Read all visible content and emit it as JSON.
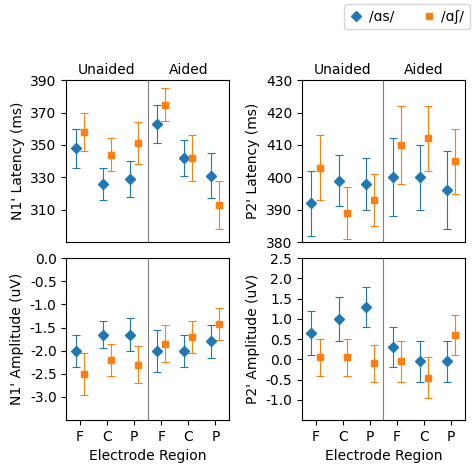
{
  "chart_data": [
    {
      "type": "scatter",
      "ylabel": "N1' Latency (ms)",
      "categories": [
        null,
        null,
        null,
        null,
        null,
        null
      ],
      "annotations": [
        "Unaided",
        "Aided"
      ],
      "series": [
        {
          "name": "/ɑs/",
          "marker": "diamond",
          "values": [
            348,
            326,
            329,
            363,
            342,
            331
          ],
          "errors": [
            12,
            10,
            11,
            12,
            11,
            14
          ]
        },
        {
          "name": "/ɑʃ/",
          "marker": "square",
          "values": [
            358,
            344,
            351,
            375,
            342,
            313
          ],
          "errors": [
            12,
            10,
            13,
            10,
            14,
            15
          ]
        }
      ],
      "ylim": [
        290,
        390
      ],
      "yticks": [
        310,
        330,
        350,
        370,
        390
      ]
    },
    {
      "type": "scatter",
      "ylabel": "N1' Amplitude (uV)",
      "xlabel": "Electrode Region",
      "categories": [
        "F",
        "C",
        "P",
        "F",
        "C",
        "P"
      ],
      "series": [
        {
          "name": "/ɑs/",
          "marker": "diamond",
          "values": [
            -2.0,
            -1.65,
            -1.65,
            -2.0,
            -2.0,
            -1.8
          ],
          "errors": [
            0.35,
            0.3,
            0.35,
            0.45,
            0.35,
            0.35
          ]
        },
        {
          "name": "/ɑʃ/",
          "marker": "square",
          "values": [
            -2.5,
            -2.2,
            -2.3,
            -1.85,
            -1.7,
            -1.42
          ],
          "errors": [
            0.45,
            0.35,
            0.4,
            0.4,
            0.35,
            0.35
          ]
        }
      ],
      "ylim": [
        -3.5,
        0
      ],
      "yticks": [
        -3.0,
        -2.5,
        -2.0,
        -1.5,
        -1.0,
        -0.5,
        0.0
      ]
    },
    {
      "type": "scatter",
      "ylabel": "P2' Latency (ms)",
      "categories": [
        null,
        null,
        null,
        null,
        null,
        null
      ],
      "annotations": [
        "Unaided",
        "Aided"
      ],
      "legend": "upper right",
      "series": [
        {
          "name": "/ɑs/",
          "marker": "diamond",
          "values": [
            392,
            399,
            398,
            400,
            400,
            396
          ],
          "errors": [
            10,
            8,
            8,
            12,
            10,
            12
          ]
        },
        {
          "name": "/ɑʃ/",
          "marker": "square",
          "values": [
            403,
            389,
            393,
            410,
            412,
            405
          ],
          "errors": [
            10,
            8,
            8,
            12,
            10,
            10
          ]
        }
      ],
      "ylim": [
        380,
        430
      ],
      "yticks": [
        380,
        390,
        400,
        410,
        420,
        430
      ]
    },
    {
      "type": "scatter",
      "ylabel": "P2' Amplitude (uV)",
      "xlabel": "Electrode Region",
      "categories": [
        "F",
        "C",
        "P",
        "F",
        "C",
        "P"
      ],
      "series": [
        {
          "name": "/ɑs/",
          "marker": "diamond",
          "values": [
            0.65,
            1.0,
            1.3,
            0.3,
            -0.05,
            -0.05
          ],
          "errors": [
            0.55,
            0.55,
            0.5,
            0.5,
            0.5,
            0.5
          ]
        },
        {
          "name": "/ɑʃ/",
          "marker": "square",
          "values": [
            0.05,
            0.05,
            -0.1,
            -0.05,
            -0.45,
            0.6
          ],
          "errors": [
            0.45,
            0.45,
            0.45,
            0.5,
            0.5,
            0.5
          ]
        }
      ],
      "ylim": [
        -1.5,
        2.5
      ],
      "yticks": [
        -1.0,
        -0.5,
        0.0,
        0.5,
        1.0,
        1.5,
        2.0,
        2.5
      ]
    }
  ]
}
